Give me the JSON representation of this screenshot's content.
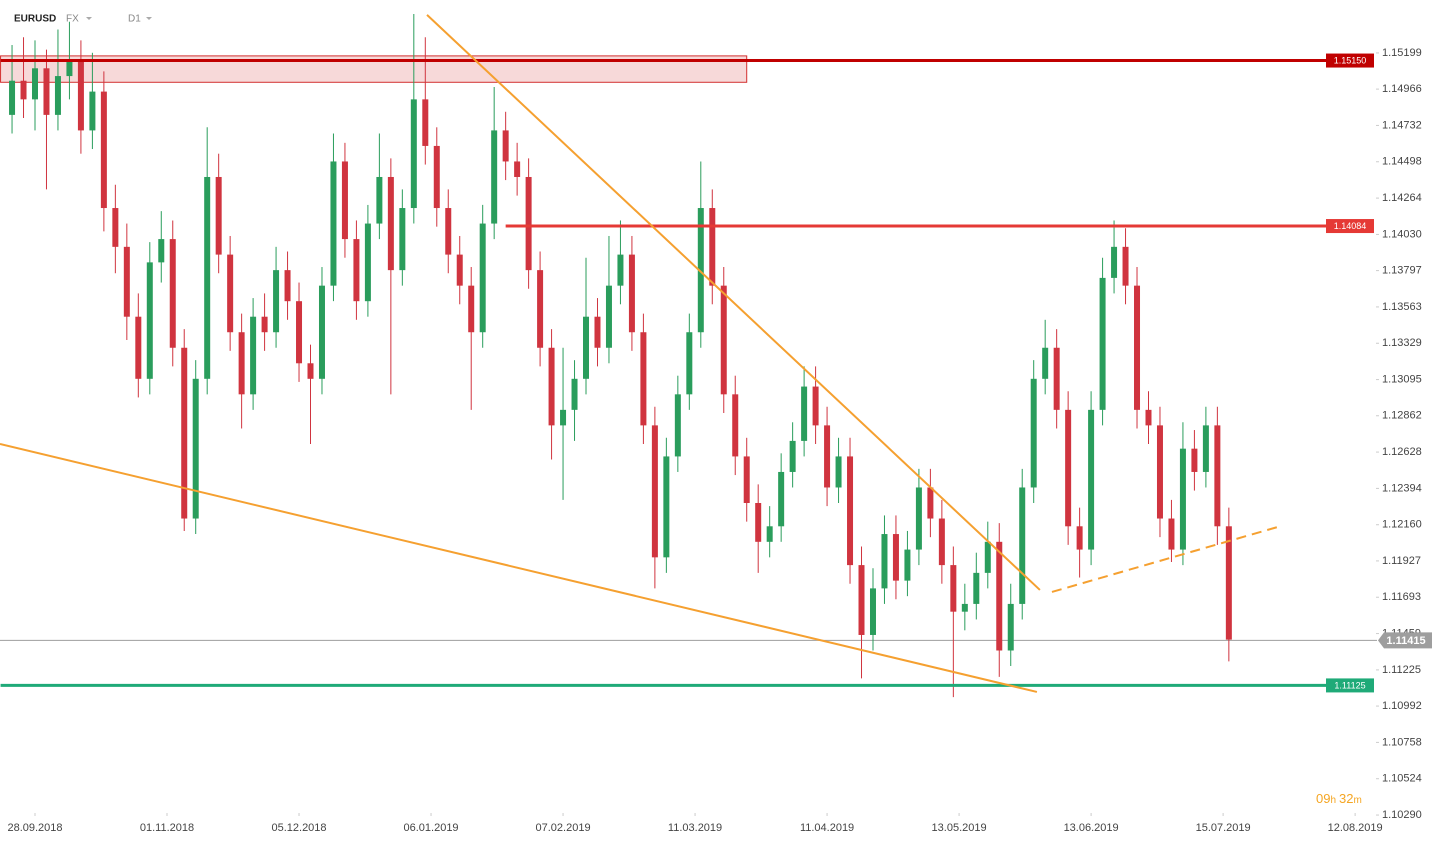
{
  "header": {
    "symbol": "EURUSD",
    "market": "FX",
    "interval": "D1"
  },
  "timer": [
    "09",
    "h",
    "32",
    "m"
  ],
  "chart_data": {
    "type": "candlestick",
    "up_color": "#2a9d5c",
    "down_color": "#d0343f",
    "xlim": [
      -1,
      120
    ],
    "ylim": [
      1.103,
      1.1554
    ],
    "xticks": [
      {
        "value": 2,
        "label": "28.09.2018"
      },
      {
        "value": 13.5,
        "label": "01.11.2018"
      },
      {
        "value": 25,
        "label": "05.12.2018"
      },
      {
        "value": 36.5,
        "label": "06.01.2019"
      },
      {
        "value": 48,
        "label": "07.02.2019"
      },
      {
        "value": 59.5,
        "label": "11.03.2019"
      },
      {
        "value": 71,
        "label": "11.04.2019"
      },
      {
        "value": 82.5,
        "label": "13.05.2019"
      },
      {
        "value": 94,
        "label": "13.06.2019"
      },
      {
        "value": 105.5,
        "label": "15.07.2019"
      },
      {
        "value": 117,
        "label": "12.08.2019"
      }
    ],
    "yticks": [
      1.15199,
      1.14966,
      1.14732,
      1.14498,
      1.14264,
      {
        "value": 1.1403,
        "label": "1.14030"
      },
      1.13797,
      1.13563,
      1.13329,
      1.13095,
      1.12862,
      1.12628,
      1.12394,
      {
        "value": 1.1216,
        "label": "1.12160"
      },
      1.11927,
      1.11693,
      1.11459,
      1.11225,
      1.10992,
      1.10758,
      1.10524,
      {
        "value": 1.1029,
        "label": "1.10290"
      }
    ],
    "ohlc": [
      [
        1.148,
        1.1525,
        1.1468,
        1.1502
      ],
      [
        1.1502,
        1.153,
        1.1478,
        1.149
      ],
      [
        1.149,
        1.1528,
        1.147,
        1.151
      ],
      [
        1.151,
        1.1522,
        1.1432,
        1.148
      ],
      [
        1.148,
        1.1535,
        1.147,
        1.1505
      ],
      [
        1.1505,
        1.154,
        1.149,
        1.1515
      ],
      [
        1.1515,
        1.1528,
        1.1455,
        1.147
      ],
      [
        1.147,
        1.152,
        1.1458,
        1.1495
      ],
      [
        1.1495,
        1.1508,
        1.1405,
        1.142
      ],
      [
        1.142,
        1.1435,
        1.1378,
        1.1395
      ],
      [
        1.1395,
        1.141,
        1.1335,
        1.135
      ],
      [
        1.135,
        1.1365,
        1.1298,
        1.131
      ],
      [
        1.131,
        1.1398,
        1.13,
        1.1385
      ],
      [
        1.1385,
        1.1418,
        1.1372,
        1.14
      ],
      [
        1.14,
        1.1412,
        1.1318,
        1.133
      ],
      [
        1.133,
        1.1342,
        1.1212,
        1.122
      ],
      [
        1.122,
        1.1322,
        1.121,
        1.131
      ],
      [
        1.131,
        1.1472,
        1.13,
        1.144
      ],
      [
        1.144,
        1.1455,
        1.1378,
        1.139
      ],
      [
        1.139,
        1.1402,
        1.1328,
        1.134
      ],
      [
        1.134,
        1.1352,
        1.1278,
        1.13
      ],
      [
        1.13,
        1.1362,
        1.129,
        1.135
      ],
      [
        1.135,
        1.1365,
        1.1328,
        1.134
      ],
      [
        1.134,
        1.1395,
        1.133,
        1.138
      ],
      [
        1.138,
        1.1392,
        1.1348,
        1.136
      ],
      [
        1.136,
        1.1372,
        1.1308,
        1.132
      ],
      [
        1.132,
        1.1332,
        1.1268,
        1.131
      ],
      [
        1.131,
        1.1382,
        1.13,
        1.137
      ],
      [
        1.137,
        1.1468,
        1.136,
        1.145
      ],
      [
        1.145,
        1.1462,
        1.1388,
        1.14
      ],
      [
        1.14,
        1.1412,
        1.1348,
        1.136
      ],
      [
        1.136,
        1.1422,
        1.135,
        1.141
      ],
      [
        1.141,
        1.1468,
        1.14,
        1.144
      ],
      [
        1.144,
        1.1452,
        1.13,
        1.138
      ],
      [
        1.138,
        1.1432,
        1.137,
        1.142
      ],
      [
        1.142,
        1.1545,
        1.141,
        1.149
      ],
      [
        1.149,
        1.153,
        1.1448,
        1.146
      ],
      [
        1.146,
        1.1472,
        1.1408,
        1.142
      ],
      [
        1.142,
        1.1432,
        1.1378,
        1.139
      ],
      [
        1.139,
        1.1402,
        1.1358,
        1.137
      ],
      [
        1.137,
        1.1382,
        1.129,
        1.134
      ],
      [
        1.134,
        1.1422,
        1.133,
        1.141
      ],
      [
        1.141,
        1.1498,
        1.14,
        1.147
      ],
      [
        1.147,
        1.1482,
        1.1438,
        1.145
      ],
      [
        1.145,
        1.1462,
        1.1428,
        1.144
      ],
      [
        1.144,
        1.1452,
        1.1368,
        1.138
      ],
      [
        1.138,
        1.1392,
        1.1318,
        1.133
      ],
      [
        1.133,
        1.1342,
        1.1258,
        1.128
      ],
      [
        1.128,
        1.133,
        1.1232,
        1.129
      ],
      [
        1.129,
        1.1322,
        1.127,
        1.131
      ],
      [
        1.131,
        1.1388,
        1.13,
        1.135
      ],
      [
        1.135,
        1.1362,
        1.1318,
        1.133
      ],
      [
        1.133,
        1.1402,
        1.132,
        1.137
      ],
      [
        1.137,
        1.1412,
        1.1358,
        1.139
      ],
      [
        1.139,
        1.1402,
        1.1328,
        1.134
      ],
      [
        1.134,
        1.1352,
        1.1268,
        1.128
      ],
      [
        1.128,
        1.1292,
        1.1175,
        1.1195
      ],
      [
        1.1195,
        1.1272,
        1.1185,
        1.126
      ],
      [
        1.126,
        1.1312,
        1.125,
        1.13
      ],
      [
        1.13,
        1.1352,
        1.129,
        1.134
      ],
      [
        1.134,
        1.145,
        1.133,
        1.142
      ],
      [
        1.142,
        1.1432,
        1.1358,
        1.137
      ],
      [
        1.137,
        1.1382,
        1.1288,
        1.13
      ],
      [
        1.13,
        1.1312,
        1.1248,
        1.126
      ],
      [
        1.126,
        1.1272,
        1.1218,
        1.123
      ],
      [
        1.123,
        1.1242,
        1.1185,
        1.1205
      ],
      [
        1.1205,
        1.1228,
        1.1195,
        1.1215
      ],
      [
        1.1215,
        1.1262,
        1.1205,
        1.125
      ],
      [
        1.125,
        1.1282,
        1.124,
        1.127
      ],
      [
        1.127,
        1.1318,
        1.126,
        1.1305
      ],
      [
        1.1305,
        1.1318,
        1.1268,
        1.128
      ],
      [
        1.128,
        1.1292,
        1.1228,
        1.124
      ],
      [
        1.124,
        1.1272,
        1.123,
        1.126
      ],
      [
        1.126,
        1.1272,
        1.1178,
        1.119
      ],
      [
        1.119,
        1.1202,
        1.1117,
        1.1145
      ],
      [
        1.1145,
        1.1188,
        1.1135,
        1.1175
      ],
      [
        1.1175,
        1.1222,
        1.1165,
        1.121
      ],
      [
        1.121,
        1.1222,
        1.1168,
        1.118
      ],
      [
        1.118,
        1.1212,
        1.117,
        1.12
      ],
      [
        1.12,
        1.1252,
        1.119,
        1.124
      ],
      [
        1.124,
        1.1252,
        1.1208,
        1.122
      ],
      [
        1.122,
        1.1232,
        1.1178,
        1.119
      ],
      [
        1.119,
        1.1202,
        1.1105,
        1.116
      ],
      [
        1.116,
        1.1178,
        1.1148,
        1.1165
      ],
      [
        1.1165,
        1.1198,
        1.1155,
        1.1185
      ],
      [
        1.1185,
        1.1218,
        1.1175,
        1.1205
      ],
      [
        1.1205,
        1.1217,
        1.1118,
        1.1135
      ],
      [
        1.1135,
        1.1178,
        1.1125,
        1.1165
      ],
      [
        1.1165,
        1.1252,
        1.1155,
        1.124
      ],
      [
        1.124,
        1.1322,
        1.123,
        1.131
      ],
      [
        1.131,
        1.1348,
        1.13,
        1.133
      ],
      [
        1.133,
        1.1342,
        1.1278,
        1.129
      ],
      [
        1.129,
        1.1302,
        1.1203,
        1.1215
      ],
      [
        1.1215,
        1.1227,
        1.1182,
        1.12
      ],
      [
        1.12,
        1.1302,
        1.119,
        1.129
      ],
      [
        1.129,
        1.1388,
        1.128,
        1.1375
      ],
      [
        1.1375,
        1.1412,
        1.1365,
        1.1395
      ],
      [
        1.1395,
        1.1407,
        1.1358,
        1.137
      ],
      [
        1.137,
        1.1382,
        1.1278,
        1.129
      ],
      [
        1.129,
        1.1302,
        1.1268,
        1.128
      ],
      [
        1.128,
        1.1292,
        1.1208,
        1.122
      ],
      [
        1.122,
        1.1232,
        1.1192,
        1.12
      ],
      [
        1.12,
        1.1282,
        1.119,
        1.1265
      ],
      [
        1.1265,
        1.1277,
        1.1238,
        1.125
      ],
      [
        1.125,
        1.1292,
        1.124,
        1.128
      ],
      [
        1.128,
        1.1292,
        1.1203,
        1.1215
      ],
      [
        1.1215,
        1.1227,
        1.1128,
        1.1142
      ]
    ],
    "zone": {
      "x": [
        -1,
        64
      ],
      "y": [
        1.1518,
        1.1501
      ],
      "color": "#d32f2f"
    },
    "levels": [
      {
        "value": 1.1515,
        "label": "1.15150",
        "color": "#c00000",
        "from": -1
      },
      {
        "value": 1.14084,
        "label": "1.14084",
        "color": "#e53935",
        "from": 43
      },
      {
        "value": 1.11125,
        "label": "1.11125",
        "color": "#1faa78",
        "from": -1
      }
    ],
    "current": {
      "value": 1.11415,
      "label": "1.11415",
      "color": "#9e9e9e"
    },
    "trendlines": [
      {
        "x": [
          36.15,
          89.54
        ],
        "y": [
          1.15444,
          1.1174
        ],
        "color": "#f5a030",
        "dashed": false
      },
      {
        "x": [
          -1.05,
          89.28
        ],
        "y": [
          1.1268,
          1.11083
        ],
        "color": "#f5a030",
        "dashed": false
      },
      {
        "x": [
          90.59,
          110.28
        ],
        "y": [
          1.11727,
          1.12146
        ],
        "color": "#f5a030",
        "dashed": true
      }
    ]
  }
}
